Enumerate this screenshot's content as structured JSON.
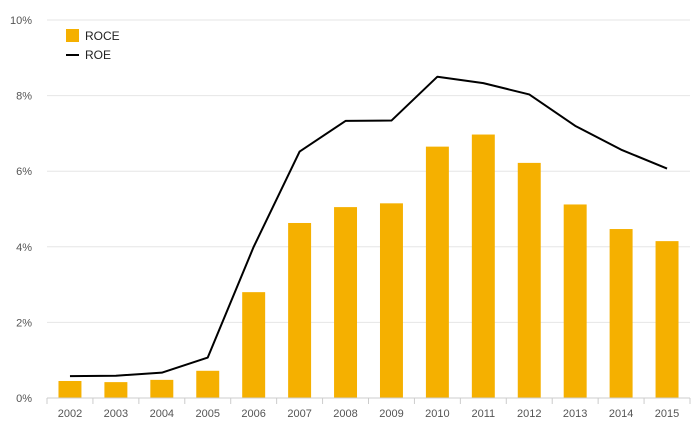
{
  "chart_data": {
    "type": "bar",
    "categories": [
      "2002",
      "2003",
      "2004",
      "2005",
      "2006",
      "2007",
      "2008",
      "2009",
      "2010",
      "2011",
      "2012",
      "2013",
      "2014",
      "2015"
    ],
    "series": [
      {
        "name": "ROCE",
        "type": "bar",
        "color": "#f5b000",
        "values": [
          0.45,
          0.42,
          0.48,
          0.72,
          2.8,
          4.63,
          5.05,
          5.15,
          6.65,
          6.97,
          6.22,
          5.12,
          4.47,
          4.15
        ]
      },
      {
        "name": "ROE",
        "type": "line",
        "color": "#000000",
        "values": [
          0.58,
          0.59,
          0.67,
          1.07,
          4.0,
          6.52,
          7.33,
          7.34,
          8.5,
          8.33,
          8.03,
          7.2,
          6.57,
          6.07
        ]
      }
    ],
    "y_ticks": [
      "0%",
      "2%",
      "4%",
      "6%",
      "8%",
      "10%"
    ],
    "ylim": [
      0,
      10
    ],
    "grid": true,
    "legend_position": "top-left"
  }
}
